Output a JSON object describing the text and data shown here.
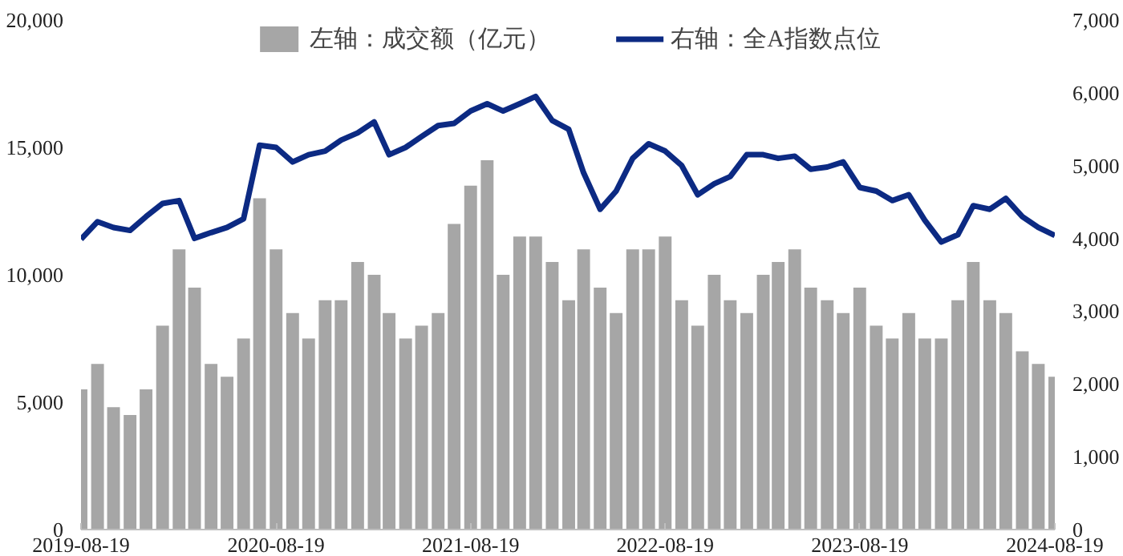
{
  "chart_data": {
    "type": "bar",
    "x": [
      "2019-08-19",
      "2019-09-19",
      "2019-10-19",
      "2019-11-19",
      "2019-12-19",
      "2020-01-19",
      "2020-02-19",
      "2020-03-19",
      "2020-04-19",
      "2020-05-19",
      "2020-06-19",
      "2020-07-19",
      "2020-08-19",
      "2020-09-19",
      "2020-10-19",
      "2020-11-19",
      "2020-12-19",
      "2021-01-19",
      "2021-02-19",
      "2021-03-19",
      "2021-04-19",
      "2021-05-19",
      "2021-06-19",
      "2021-07-19",
      "2021-08-19",
      "2021-09-19",
      "2021-10-19",
      "2021-11-19",
      "2021-12-19",
      "2022-01-19",
      "2022-02-19",
      "2022-03-19",
      "2022-04-19",
      "2022-05-19",
      "2022-06-19",
      "2022-07-19",
      "2022-08-19",
      "2022-09-19",
      "2022-10-19",
      "2022-11-19",
      "2022-12-19",
      "2023-01-19",
      "2023-02-19",
      "2023-03-19",
      "2023-04-19",
      "2023-05-19",
      "2023-06-19",
      "2023-07-19",
      "2023-08-19",
      "2023-09-19",
      "2023-10-19",
      "2023-11-19",
      "2023-12-19",
      "2024-01-19",
      "2024-02-19",
      "2024-03-19",
      "2024-04-19",
      "2024-05-19",
      "2024-06-19",
      "2024-07-19",
      "2024-08-19"
    ],
    "series": [
      {
        "name": "左轴：成交额（亿元）",
        "color": "#a6a6a6",
        "values": [
          5500,
          6500,
          4800,
          4500,
          5500,
          8000,
          11000,
          9500,
          6500,
          6000,
          7500,
          13000,
          11000,
          8500,
          7500,
          9000,
          9000,
          10500,
          10000,
          8500,
          7500,
          8000,
          8500,
          12000,
          13500,
          14500,
          10000,
          11500,
          11500,
          10500,
          9000,
          11000,
          9500,
          8500,
          11000,
          11000,
          11500,
          9000,
          8000,
          10000,
          9000,
          8500,
          10000,
          10500,
          11000,
          9500,
          9000,
          8500,
          9500,
          8000,
          7500,
          8500,
          7500,
          7500,
          9000,
          10500,
          9000,
          8500,
          7000,
          6500,
          6000
        ]
      },
      {
        "name": "右轴：全A指数点位",
        "type": "line",
        "axis": "y2",
        "color": "#0c2a83",
        "values": [
          3990,
          4230,
          4150,
          4110,
          4300,
          4480,
          4520,
          4000,
          4080,
          4150,
          4270,
          5280,
          5250,
          5050,
          5150,
          5200,
          5350,
          5450,
          5600,
          5150,
          5250,
          5400,
          5550,
          5580,
          5750,
          5850,
          5750,
          5850,
          5950,
          5620,
          5500,
          4900,
          4400,
          4650,
          5100,
          5300,
          5200,
          5000,
          4600,
          4750,
          4850,
          5150,
          5150,
          5100,
          5130,
          4950,
          4980,
          5050,
          4700,
          4650,
          4520,
          4600,
          4250,
          3950,
          4050,
          4450,
          4400,
          4550,
          4300,
          4150,
          4040
        ]
      }
    ],
    "xlim": [
      "2019-08-19",
      "2024-08-19"
    ],
    "xticks": [
      "2019-08-19",
      "2020-08-19",
      "2021-08-19",
      "2022-08-19",
      "2023-08-19",
      "2024-08-19"
    ],
    "ylim": [
      0,
      20000
    ],
    "yticks": [
      {
        "value": 0,
        "label": "0"
      },
      {
        "value": 5000,
        "label": "5,000"
      },
      {
        "value": 10000,
        "label": "10,000"
      },
      {
        "value": 15000,
        "label": "15,000"
      },
      {
        "value": 20000,
        "label": "20,000"
      }
    ],
    "y2lim": [
      0,
      7000
    ],
    "y2ticks": [
      {
        "value": 0,
        "label": "0"
      },
      {
        "value": 1000,
        "label": "1,000"
      },
      {
        "value": 2000,
        "label": "2,000"
      },
      {
        "value": 3000,
        "label": "3,000"
      },
      {
        "value": 4000,
        "label": "4,000"
      },
      {
        "value": 5000,
        "label": "5,000"
      },
      {
        "value": 6000,
        "label": "6,000"
      },
      {
        "value": 7000,
        "label": "7,000"
      }
    ],
    "grid": false,
    "legend": "top"
  }
}
